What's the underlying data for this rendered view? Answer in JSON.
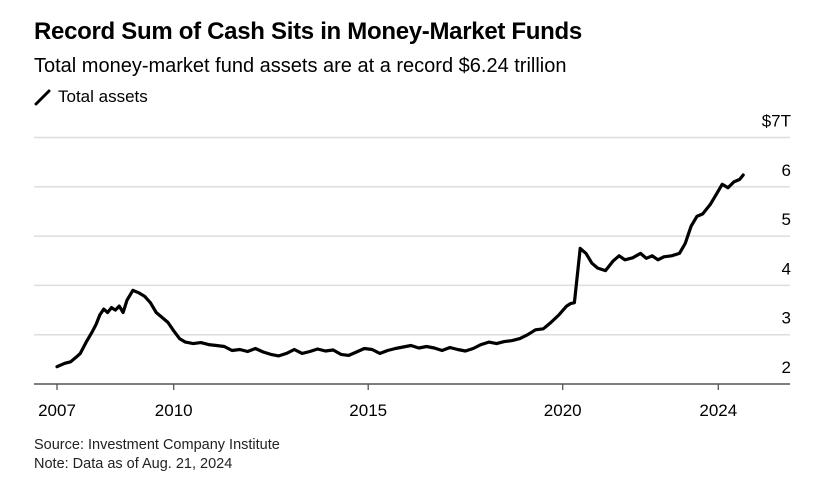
{
  "header": {
    "title": "Record Sum of Cash Sits in Money-Market Funds",
    "subtitle": "Total money-market fund assets are at a record $6.24 trillion"
  },
  "legend": {
    "label": "Total assets",
    "icon": "line-swatch-icon"
  },
  "footer": {
    "source": "Source: Investment Company Institute",
    "note": "Note: Data as of Aug. 21, 2024"
  },
  "colors": {
    "line": "#000000",
    "grid": "#dddddd",
    "axis": "#555555"
  },
  "chart_data": {
    "type": "line",
    "title": "Record Sum of Cash Sits in Money-Market Funds",
    "subtitle": "Total money-market fund assets are at a record $6.24 trillion",
    "xlabel": "",
    "ylabel": "",
    "xlim": [
      2007.0,
      2025.2
    ],
    "ylim": [
      2,
      7
    ],
    "y_unit_label": "$7T",
    "y_ticks": [
      2,
      3,
      4,
      5,
      6,
      7
    ],
    "y_tick_labels": [
      "2",
      "3",
      "4",
      "5",
      "6",
      "$7T"
    ],
    "x_ticks": [
      2007,
      2010,
      2015,
      2020,
      2024
    ],
    "x_tick_labels": [
      "2007",
      "2010",
      "2015",
      "2020",
      "2024"
    ],
    "grid": true,
    "legend_position": "top-left",
    "series": [
      {
        "name": "Total assets",
        "x": [
          2007.0,
          2007.2,
          2007.35,
          2007.5,
          2007.6,
          2007.75,
          2007.9,
          2008.0,
          2008.1,
          2008.2,
          2008.3,
          2008.4,
          2008.5,
          2008.6,
          2008.7,
          2008.8,
          2008.95,
          2009.1,
          2009.25,
          2009.4,
          2009.55,
          2009.7,
          2009.85,
          2010.0,
          2010.15,
          2010.3,
          2010.5,
          2010.7,
          2010.9,
          2011.1,
          2011.3,
          2011.5,
          2011.7,
          2011.9,
          2012.1,
          2012.3,
          2012.5,
          2012.7,
          2012.9,
          2013.1,
          2013.3,
          2013.5,
          2013.7,
          2013.9,
          2014.1,
          2014.3,
          2014.5,
          2014.7,
          2014.9,
          2015.1,
          2015.3,
          2015.5,
          2015.7,
          2015.9,
          2016.1,
          2016.3,
          2016.5,
          2016.7,
          2016.9,
          2017.1,
          2017.3,
          2017.5,
          2017.7,
          2017.9,
          2018.1,
          2018.3,
          2018.5,
          2018.7,
          2018.9,
          2019.1,
          2019.3,
          2019.5,
          2019.7,
          2019.9,
          2020.1,
          2020.2,
          2020.3,
          2020.45,
          2020.6,
          2020.75,
          2020.9,
          2021.1,
          2021.3,
          2021.45,
          2021.6,
          2021.8,
          2022.0,
          2022.15,
          2022.3,
          2022.45,
          2022.6,
          2022.8,
          2023.0,
          2023.15,
          2023.3,
          2023.45,
          2023.6,
          2023.8,
          2023.95,
          2024.1,
          2024.25,
          2024.4,
          2024.55,
          2024.64
        ],
        "values": [
          2.35,
          2.42,
          2.45,
          2.55,
          2.62,
          2.85,
          3.05,
          3.2,
          3.4,
          3.52,
          3.45,
          3.55,
          3.5,
          3.58,
          3.45,
          3.7,
          3.9,
          3.85,
          3.78,
          3.65,
          3.45,
          3.35,
          3.25,
          3.08,
          2.92,
          2.85,
          2.82,
          2.84,
          2.8,
          2.78,
          2.76,
          2.68,
          2.7,
          2.66,
          2.72,
          2.65,
          2.6,
          2.57,
          2.62,
          2.7,
          2.62,
          2.66,
          2.71,
          2.67,
          2.69,
          2.6,
          2.58,
          2.65,
          2.72,
          2.7,
          2.62,
          2.68,
          2.72,
          2.75,
          2.78,
          2.73,
          2.76,
          2.73,
          2.68,
          2.74,
          2.7,
          2.67,
          2.72,
          2.8,
          2.85,
          2.82,
          2.86,
          2.88,
          2.92,
          3.0,
          3.1,
          3.12,
          3.25,
          3.4,
          3.58,
          3.63,
          3.65,
          4.75,
          4.65,
          4.45,
          4.35,
          4.3,
          4.5,
          4.6,
          4.52,
          4.56,
          4.65,
          4.55,
          4.6,
          4.52,
          4.58,
          4.6,
          4.65,
          4.85,
          5.2,
          5.4,
          5.45,
          5.65,
          5.85,
          6.05,
          5.98,
          6.1,
          6.15,
          6.24
        ]
      }
    ]
  }
}
